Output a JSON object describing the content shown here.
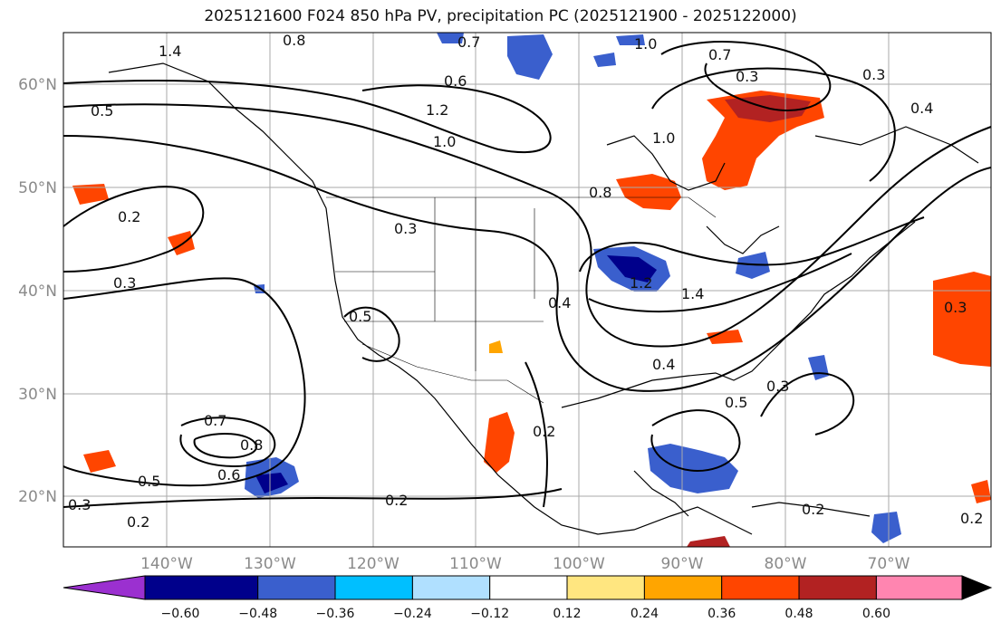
{
  "title": "2025121600 F024 850 hPa PV, precipitation PC (2025121900 - 2025122000)",
  "map": {
    "lat_labels": [
      "60°N",
      "50°N",
      "40°N",
      "30°N",
      "20°N"
    ],
    "lon_labels": [
      "140°W",
      "130°W",
      "120°W",
      "110°W",
      "100°W",
      "90°W",
      "80°W",
      "70°W"
    ]
  },
  "colorbar": {
    "colors": [
      "#9b30d0",
      "#00008b",
      "#3a5fcd",
      "#00bfff",
      "#b0e0ff",
      "#ffffff",
      "#ffe680",
      "#ffa500",
      "#ff4500",
      "#b22222",
      "#ff85b0"
    ],
    "ticks": [
      "−0.60",
      "−0.48",
      "−0.36",
      "−0.24",
      "−0.12",
      "0.12",
      "0.24",
      "0.36",
      "0.48",
      "0.60"
    ]
  },
  "contour_labels": [
    "1.4",
    "0.8",
    "0.7",
    "1.0",
    "0.6",
    "0.5",
    "1.2",
    "1.0",
    "0.2",
    "0.3",
    "0.8",
    "0.7",
    "0.3",
    "1.0",
    "0.3",
    "0.5",
    "0.4",
    "1.2",
    "1.4",
    "0.4",
    "0.3",
    "0.4",
    "0.3",
    "0.7",
    "0.8",
    "0.5",
    "0.6",
    "0.2",
    "0.2",
    "0.3",
    "0.5",
    "0.2",
    "0.2",
    "0.3",
    "0.2"
  ]
}
